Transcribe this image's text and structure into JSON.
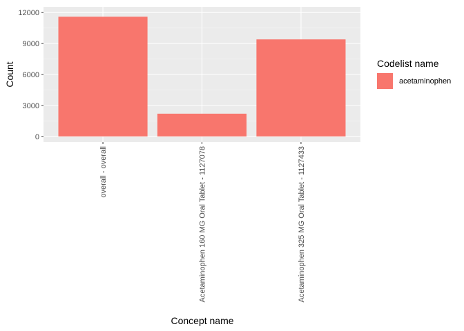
{
  "chart_data": {
    "type": "bar",
    "categories": [
      "overall - overall",
      "Acetaminophen 160 MG Oral Tablet - 1127078",
      "Acetaminophen 325 MG Oral Tablet - 1127433"
    ],
    "series": [
      {
        "name": "acetaminophen",
        "values": [
          11600,
          2200,
          9400
        ],
        "color": "#f8766d"
      }
    ],
    "xlabel": "Concept name",
    "ylabel": "Count",
    "ylim": [
      0,
      12000
    ],
    "yticks": [
      0,
      3000,
      6000,
      9000,
      12000
    ],
    "ytick_labels": [
      "0",
      "3000",
      "6000",
      "9000",
      "12000"
    ],
    "grid": true,
    "panel_color": "#ebebeb",
    "legend": {
      "title": "Codelist name",
      "position": "right"
    }
  }
}
